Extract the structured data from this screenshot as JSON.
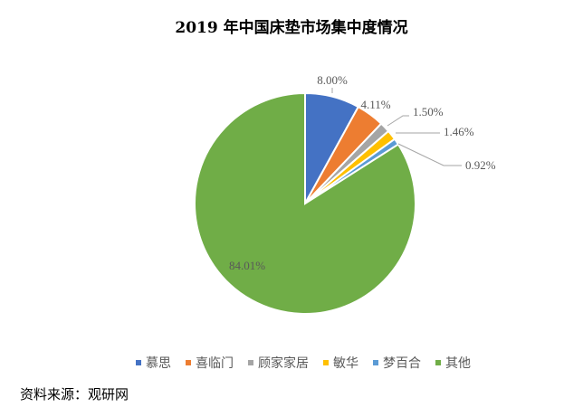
{
  "chart_data": {
    "type": "pie",
    "title": "2019 年中国床垫市场集中度情况",
    "categories": [
      "慕思",
      "喜临门",
      "顾家家居",
      "敏华",
      "梦百合",
      "其他"
    ],
    "values": [
      8.0,
      4.11,
      1.5,
      1.46,
      0.92,
      84.01
    ],
    "labels": [
      "8.00%",
      "4.11%",
      "1.50%",
      "1.46%",
      "0.92%",
      "84.01%"
    ],
    "colors": [
      "#4472C4",
      "#ED7D31",
      "#A5A5A5",
      "#FFC000",
      "#5B9BD5",
      "#70AD47"
    ],
    "legend_position": "bottom",
    "start_angle": "12 o'clock, clockwise"
  },
  "title": "2019 年中国床垫市场集中度情况",
  "legend": [
    {
      "label": "慕思",
      "color": "#4472C4"
    },
    {
      "label": "喜临门",
      "color": "#ED7D31"
    },
    {
      "label": "顾家家居",
      "color": "#A5A5A5"
    },
    {
      "label": "敏华",
      "color": "#FFC000"
    },
    {
      "label": "梦百合",
      "color": "#5B9BD5"
    },
    {
      "label": "其他",
      "color": "#70AD47"
    }
  ],
  "source": "资料来源：观研网"
}
